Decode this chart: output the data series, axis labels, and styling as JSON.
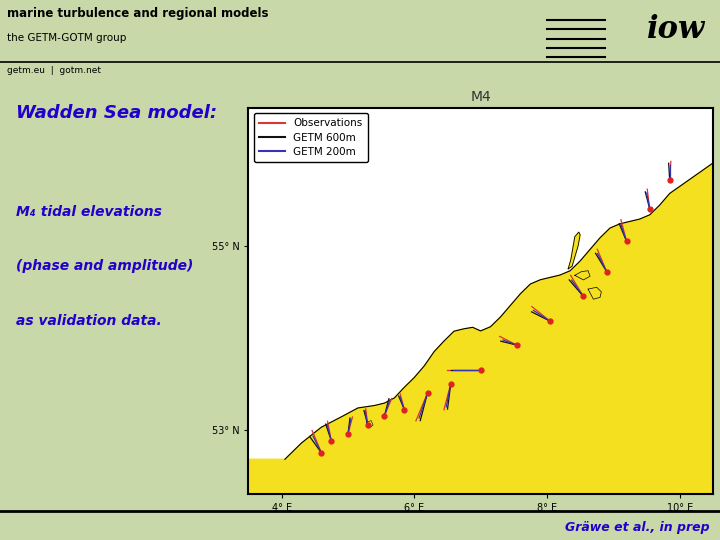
{
  "bg_color": "#c8d8a8",
  "header_bg": "#b8cc90",
  "footer_bg": "#b8cc90",
  "header_title": "marine turbulence and regional models",
  "header_subtitle": "the GETM-GOTM group",
  "header_links": "getm.eu  |  gotm.net",
  "main_title": "Wadden Sea model:",
  "main_title_color": "#2200cc",
  "body_text_lines": [
    "M₄ tidal elevations",
    "(phase and amplitude)",
    "as validation data."
  ],
  "body_text_color": "#2200cc",
  "map_label": "M4",
  "map_label_color": "#333333",
  "legend_entries": [
    "Observations",
    "GETM 600m",
    "GETM 200m"
  ],
  "legend_colors": [
    "#dd3333",
    "#111111",
    "#3333bb"
  ],
  "footer_text": "Gräwe et al., in prep",
  "footer_text_color": "#2200cc",
  "header_line_color": "#000000",
  "footer_line_color": "#000000",
  "map_xlim": [
    3.5,
    10.5
  ],
  "map_ylim": [
    52.3,
    56.5
  ],
  "map_xticks": [
    4,
    6,
    8,
    10
  ],
  "map_xticklabels": [
    "4° E",
    "6° E",
    "8° E",
    "10° E"
  ],
  "map_yticks": [
    53,
    55
  ],
  "map_yticklabels": [
    "53° N",
    "55° N"
  ],
  "land_color": "#f5e020",
  "sea_color": "#ffffff",
  "coast_color": "#000000",
  "dot_color": "#dd2222",
  "stations": [
    [
      4.6,
      52.75,
      -30,
      0.28,
      -45,
      0.25,
      -35,
      0.22
    ],
    [
      4.75,
      52.88,
      -15,
      0.22,
      -25,
      0.2,
      -20,
      0.18
    ],
    [
      5.0,
      52.95,
      20,
      0.2,
      10,
      0.18,
      15,
      0.17
    ],
    [
      5.3,
      53.05,
      -10,
      0.18,
      -20,
      0.17,
      -15,
      0.16
    ],
    [
      5.55,
      53.15,
      30,
      0.22,
      20,
      0.2,
      25,
      0.19
    ],
    [
      5.85,
      53.22,
      -20,
      0.18,
      -30,
      0.17,
      -25,
      0.15
    ],
    [
      6.2,
      53.4,
      -150,
      0.35,
      -160,
      0.32,
      -155,
      0.3
    ],
    [
      6.55,
      53.5,
      -160,
      0.3,
      -170,
      0.28,
      -165,
      0.26
    ],
    [
      7.0,
      53.65,
      -90,
      0.5,
      -90,
      0.45,
      -90,
      0.42
    ],
    [
      7.55,
      53.92,
      -70,
      0.28,
      -80,
      0.25,
      -75,
      0.22
    ],
    [
      8.05,
      54.18,
      -60,
      0.32,
      -70,
      0.3,
      -65,
      0.28
    ],
    [
      8.55,
      54.45,
      -40,
      0.3,
      -50,
      0.28,
      -45,
      0.25
    ],
    [
      8.9,
      54.72,
      -30,
      0.28,
      -40,
      0.26,
      -35,
      0.24
    ],
    [
      9.2,
      55.05,
      -20,
      0.25,
      -30,
      0.22,
      -25,
      0.2
    ],
    [
      9.55,
      55.4,
      -10,
      0.22,
      -20,
      0.2,
      -15,
      0.18
    ],
    [
      9.85,
      55.72,
      5,
      0.2,
      -5,
      0.18,
      0,
      0.16
    ]
  ]
}
